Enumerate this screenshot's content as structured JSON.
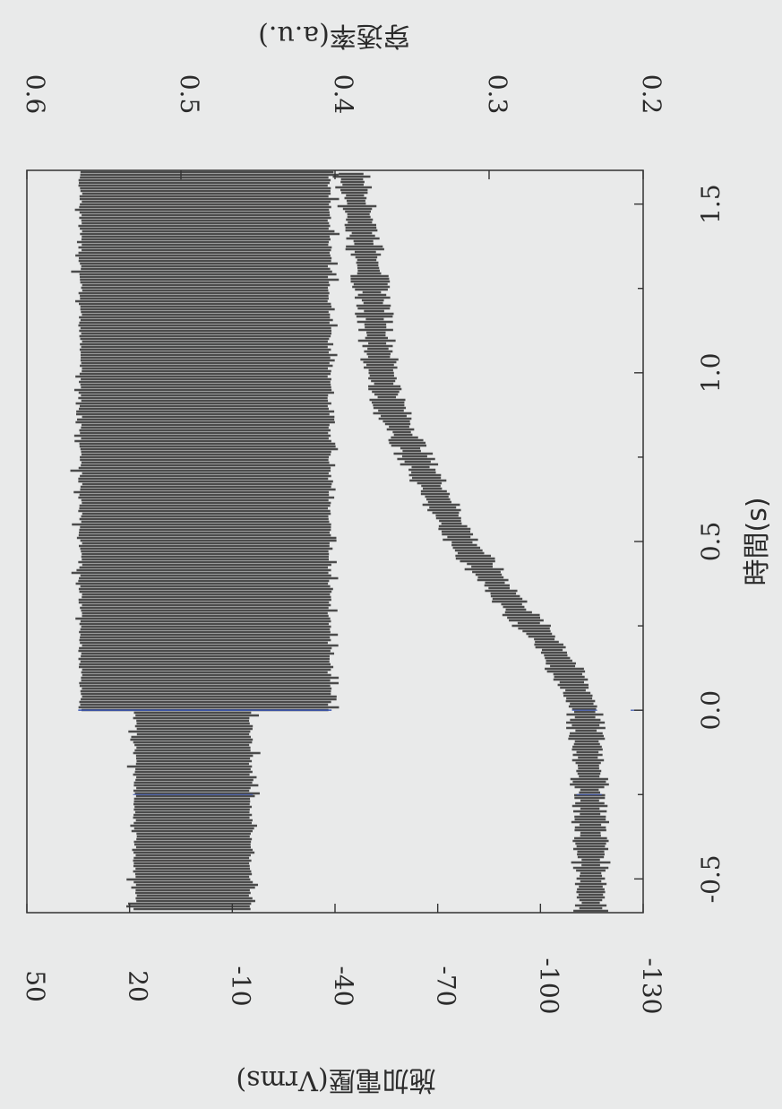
{
  "chart_data": {
    "type": "line",
    "orientation": "rotated-90-clockwise",
    "xlabel": "時間(s)",
    "ylabel_left": "施加電壓(Vrms)",
    "ylabel_right": "穿透率(a.u.)",
    "xlim": [
      -0.6,
      1.6
    ],
    "ylim_left": [
      -130,
      50
    ],
    "ylim_right": [
      0.2,
      0.6
    ],
    "x_ticks": [
      "-0.5",
      "0.0",
      "0.5",
      "1.0",
      "1.5"
    ],
    "y_left_ticks": [
      "50",
      "20",
      "-10",
      "-40",
      "-70",
      "-100",
      "-130"
    ],
    "y_right_ticks": [
      "0.6",
      "0.5",
      "0.4",
      "0.3",
      "0.2"
    ],
    "series": [
      {
        "axis": "left",
        "style": "oscillating-band",
        "x": [
          -0.6,
          0.0,
          0.0,
          1.6
        ],
        "upper": [
          19,
          19,
          35,
          35
        ],
        "lower": [
          -16,
          -16,
          -39,
          -39
        ]
      },
      {
        "axis": "right",
        "style": "noisy-line",
        "x": [
          -0.6,
          -0.4,
          -0.2,
          0.0,
          0.1,
          0.2,
          0.3,
          0.4,
          0.5,
          0.6,
          0.7,
          0.8,
          0.9,
          1.0,
          1.1,
          1.2,
          1.3,
          1.4,
          1.5,
          1.6
        ],
        "y": [
          0.234,
          0.234,
          0.235,
          0.238,
          0.248,
          0.262,
          0.283,
          0.3,
          0.318,
          0.33,
          0.342,
          0.354,
          0.365,
          0.37,
          0.373,
          0.375,
          0.378,
          0.382,
          0.386,
          0.39
        ]
      }
    ]
  }
}
